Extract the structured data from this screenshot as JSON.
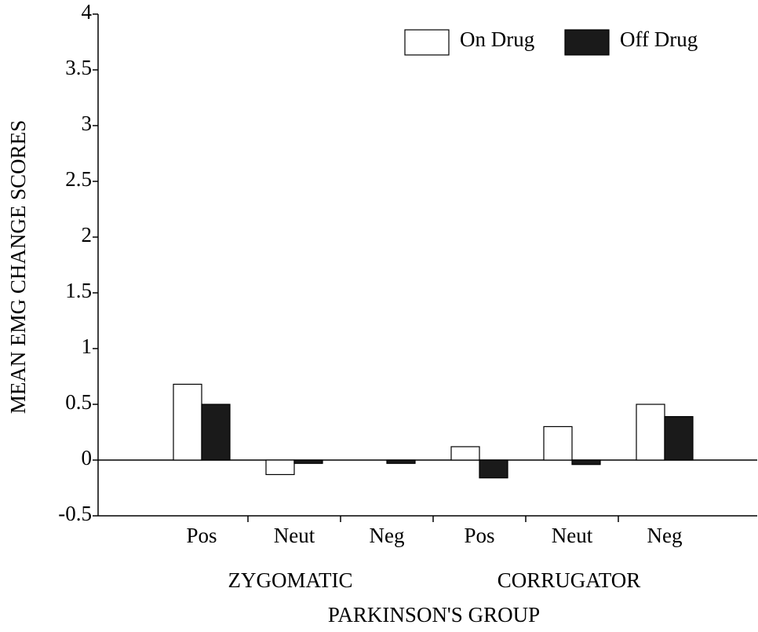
{
  "chart_data": {
    "type": "bar",
    "y_label": "MEAN EMG CHANGE SCORES",
    "x_label": "PARKINSON'S GROUP",
    "group_labels": [
      "ZYGOMATIC",
      "CORRUGATOR"
    ],
    "categories": [
      "Pos",
      "Neut",
      "Neg",
      "Pos",
      "Neut",
      "Neg"
    ],
    "series": [
      {
        "name": "On Drug",
        "color": "#ffffff",
        "values": [
          0.68,
          -0.13,
          0,
          0.12,
          0.3,
          0.5
        ]
      },
      {
        "name": "Off Drug",
        "color": "#1a1a1a",
        "values": [
          0.5,
          -0.03,
          -0.03,
          -0.16,
          -0.04,
          0.39
        ]
      }
    ],
    "ylim": [
      -0.5,
      4
    ],
    "yticks": [
      -0.5,
      0,
      0.5,
      1,
      1.5,
      2,
      2.5,
      3,
      3.5,
      4
    ],
    "legend": "top-right"
  }
}
